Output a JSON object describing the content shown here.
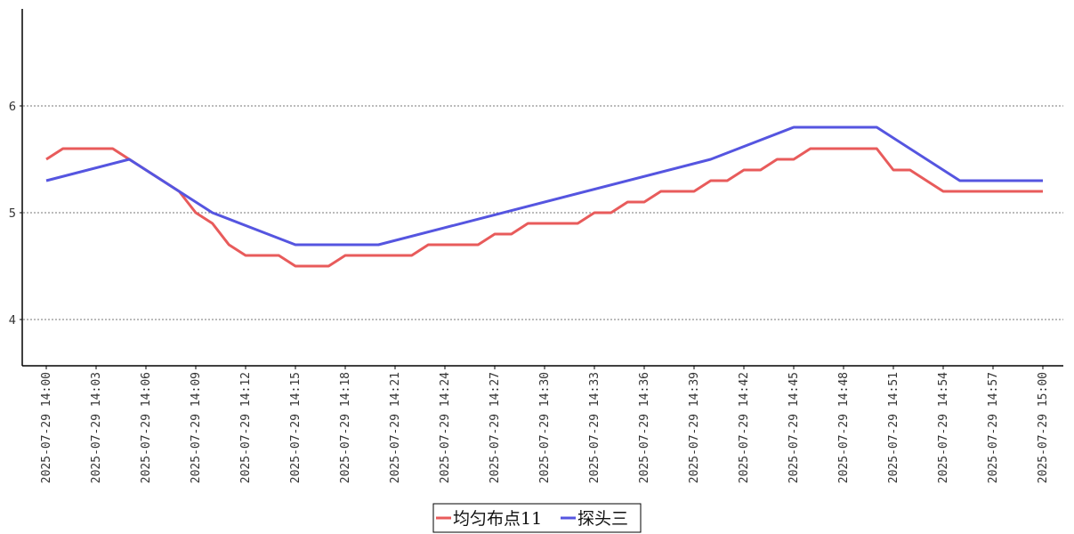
{
  "chart_data": {
    "type": "line",
    "x": [
      "2025-07-29 14:00",
      "2025-07-29 14:01",
      "2025-07-29 14:02",
      "2025-07-29 14:03",
      "2025-07-29 14:04",
      "2025-07-29 14:05",
      "2025-07-29 14:06",
      "2025-07-29 14:07",
      "2025-07-29 14:08",
      "2025-07-29 14:09",
      "2025-07-29 14:10",
      "2025-07-29 14:11",
      "2025-07-29 14:12",
      "2025-07-29 14:13",
      "2025-07-29 14:14",
      "2025-07-29 14:15",
      "2025-07-29 14:16",
      "2025-07-29 14:17",
      "2025-07-29 14:18",
      "2025-07-29 14:19",
      "2025-07-29 14:20",
      "2025-07-29 14:21",
      "2025-07-29 14:22",
      "2025-07-29 14:23",
      "2025-07-29 14:24",
      "2025-07-29 14:25",
      "2025-07-29 14:26",
      "2025-07-29 14:27",
      "2025-07-29 14:28",
      "2025-07-29 14:29",
      "2025-07-29 14:30",
      "2025-07-29 14:31",
      "2025-07-29 14:32",
      "2025-07-29 14:33",
      "2025-07-29 14:34",
      "2025-07-29 14:35",
      "2025-07-29 14:36",
      "2025-07-29 14:37",
      "2025-07-29 14:38",
      "2025-07-29 14:39",
      "2025-07-29 14:40",
      "2025-07-29 14:41",
      "2025-07-29 14:42",
      "2025-07-29 14:43",
      "2025-07-29 14:44",
      "2025-07-29 14:45",
      "2025-07-29 14:46",
      "2025-07-29 14:47",
      "2025-07-29 14:48",
      "2025-07-29 14:49",
      "2025-07-29 14:50",
      "2025-07-29 14:51",
      "2025-07-29 14:52",
      "2025-07-29 14:53",
      "2025-07-29 14:54",
      "2025-07-29 14:55",
      "2025-07-29 14:56",
      "2025-07-29 14:57",
      "2025-07-29 14:58",
      "2025-07-29 14:59",
      "2025-07-29 15:00"
    ],
    "x_tick_labels": [
      "2025-07-29 14:00",
      "2025-07-29 14:03",
      "2025-07-29 14:06",
      "2025-07-29 14:09",
      "2025-07-29 14:12",
      "2025-07-29 14:15",
      "2025-07-29 14:18",
      "2025-07-29 14:21",
      "2025-07-29 14:24",
      "2025-07-29 14:27",
      "2025-07-29 14:30",
      "2025-07-29 14:33",
      "2025-07-29 14:36",
      "2025-07-29 14:39",
      "2025-07-29 14:42",
      "2025-07-29 14:45",
      "2025-07-29 14:48",
      "2025-07-29 14:51",
      "2025-07-29 14:54",
      "2025-07-29 14:57",
      "2025-07-29 15:00"
    ],
    "y_ticks": [
      4,
      5,
      6
    ],
    "ylim": [
      3.6,
      6.9
    ],
    "grid": "horizontal-dotted",
    "legend_position": "bottom-center",
    "series": [
      {
        "name": "均匀布点11",
        "color": "#e85b5b",
        "values": [
          5.5,
          5.6,
          5.6,
          5.6,
          5.6,
          5.5,
          5.4,
          5.3,
          5.2,
          5.0,
          4.9,
          4.7,
          4.6,
          4.6,
          4.6,
          4.5,
          4.5,
          4.5,
          4.6,
          4.6,
          4.6,
          4.6,
          4.6,
          4.7,
          4.7,
          4.7,
          4.7,
          4.8,
          4.8,
          4.9,
          4.9,
          4.9,
          4.9,
          5.0,
          5.0,
          5.1,
          5.1,
          5.2,
          5.2,
          5.2,
          5.3,
          5.3,
          5.4,
          5.4,
          5.5,
          5.5,
          5.6,
          5.6,
          5.6,
          5.6,
          5.6,
          5.4,
          5.4,
          5.3,
          5.2,
          5.2,
          5.2,
          5.2,
          5.2,
          5.2,
          5.2
        ]
      },
      {
        "name": "探头三",
        "color": "#5555e0",
        "values": [
          5.3,
          null,
          null,
          null,
          null,
          5.5,
          null,
          null,
          5.2,
          null,
          5.0,
          null,
          null,
          null,
          null,
          4.7,
          null,
          null,
          null,
          null,
          4.7,
          null,
          null,
          null,
          null,
          null,
          null,
          null,
          null,
          null,
          null,
          null,
          null,
          null,
          null,
          null,
          null,
          null,
          null,
          null,
          5.5,
          null,
          null,
          null,
          null,
          5.8,
          null,
          null,
          null,
          null,
          5.8,
          null,
          null,
          null,
          null,
          5.3,
          null,
          null,
          null,
          null,
          5.3
        ]
      }
    ]
  }
}
